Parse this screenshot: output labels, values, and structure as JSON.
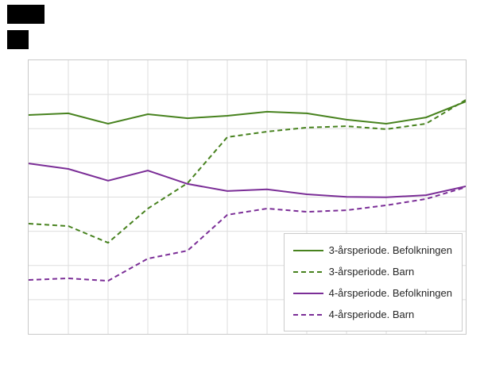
{
  "colors": {
    "background": "#ffffff",
    "grid": "#dedede",
    "plot_border": "#c9c9c9",
    "legend_border": "#cccccc",
    "redacted_block": "#000000",
    "text": "#262626",
    "green": "#47821e",
    "purple": "#7b2e97"
  },
  "chart_data": {
    "type": "line",
    "title": "",
    "xlabel": "",
    "ylabel": "",
    "x": [
      1,
      2,
      3,
      4,
      5,
      6,
      7,
      8,
      9,
      10,
      11,
      12
    ],
    "x_tick_labels_visible": false,
    "y_tick_labels_visible": false,
    "ylim": [
      0,
      100
    ],
    "y_grid_rows": 8,
    "grid": true,
    "legend_position": "lower-right",
    "value_note": "axis tick labels are not visible in the screenshot; values estimated from line positions on a 0-100 scale of plot height",
    "series": [
      {
        "name": "3-årsperiode. Befolkningen",
        "color": "#47821e",
        "dashed": false,
        "values": [
          80.0,
          80.6,
          76.8,
          80.3,
          78.8,
          79.7,
          81.2,
          80.6,
          78.3,
          76.8,
          79.1,
          84.9
        ]
      },
      {
        "name": "3-årsperiode. Barn",
        "color": "#47821e",
        "dashed": true,
        "values": [
          40.3,
          39.4,
          33.3,
          45.8,
          55.1,
          71.9,
          73.9,
          75.4,
          75.9,
          74.8,
          76.8,
          85.5
        ]
      },
      {
        "name": "4-årsperiode. Befolkningen",
        "color": "#7b2e97",
        "dashed": false,
        "values": [
          62.3,
          60.3,
          56.0,
          59.7,
          54.8,
          52.2,
          52.8,
          51.0,
          50.1,
          49.9,
          50.7,
          53.9
        ]
      },
      {
        "name": "4-årsperiode. Barn",
        "color": "#7b2e97",
        "dashed": true,
        "values": [
          19.7,
          20.3,
          19.4,
          27.5,
          30.4,
          43.5,
          45.8,
          44.6,
          45.2,
          47.0,
          49.3,
          53.6
        ]
      }
    ]
  }
}
